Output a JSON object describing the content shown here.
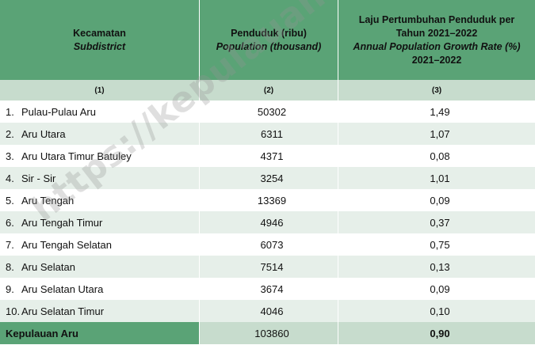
{
  "header": {
    "col1_id": "Kecamatan",
    "col1_en": "Subdistrict",
    "col2_id": "Penduduk (ribu)",
    "col2_en": "Population (thousand)",
    "col3_line1": "Laju Pertumbuhan Penduduk per",
    "col3_line2": "Tahun 2021–2022",
    "col3_en": "Annual Population Growth Rate (%)",
    "col3_line4": "2021–2022"
  },
  "colnums": [
    "(1)",
    "(2)",
    "(3)"
  ],
  "rows": [
    {
      "no": "1.",
      "name": "Pulau-Pulau Aru",
      "population": "50302",
      "growth": "1,49"
    },
    {
      "no": "2.",
      "name": "Aru Utara",
      "population": "6311",
      "growth": "1,07"
    },
    {
      "no": "3.",
      "name": "Aru Utara Timur Batuley",
      "population": "4371",
      "growth": "0,08"
    },
    {
      "no": "4.",
      "name": "Sir - Sir",
      "population": "3254",
      "growth": "1,01"
    },
    {
      "no": "5.",
      "name": "Aru Tengah",
      "population": "13369",
      "growth": "0,09"
    },
    {
      "no": "6.",
      "name": "Aru Tengah Timur",
      "population": "4946",
      "growth": "0,37"
    },
    {
      "no": "7.",
      "name": "Aru Tengah Selatan",
      "population": "6073",
      "growth": "0,75"
    },
    {
      "no": "8.",
      "name": "Aru Selatan",
      "population": "7514",
      "growth": "0,13"
    },
    {
      "no": "9.",
      "name": "Aru Selatan Utara",
      "population": "3674",
      "growth": "0,09"
    },
    {
      "no": "10.",
      "name": "Aru Selatan Timur",
      "population": "4046",
      "growth": "0,10"
    }
  ],
  "total": {
    "name": "Kepulauan Aru",
    "population": "103860",
    "growth": "0,90"
  },
  "watermark": "https://kepulauanarukab.bps.go.id",
  "colors": {
    "header_green": "#5aa376",
    "light_green": "#c7dccd",
    "row_alt": "#e6efe9"
  }
}
